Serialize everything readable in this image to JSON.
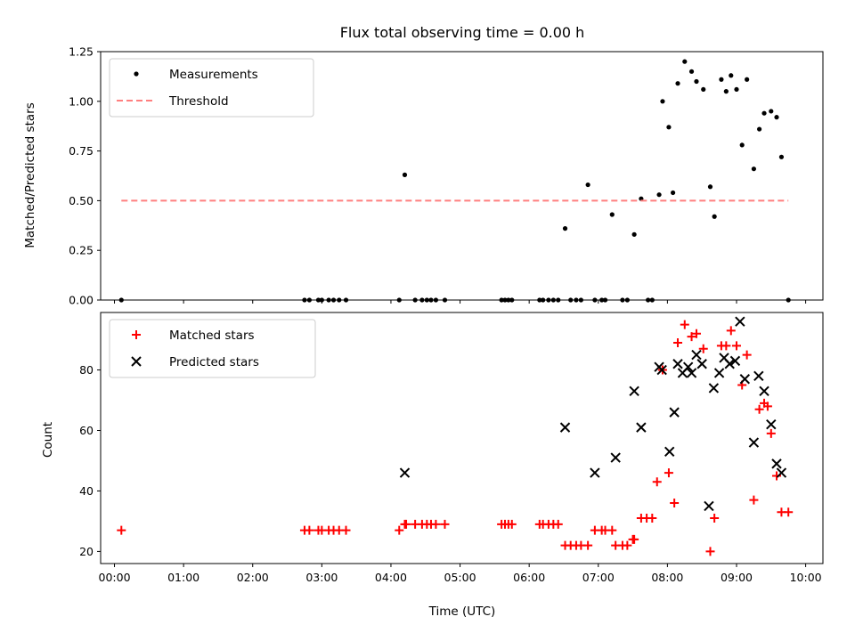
{
  "chart_data": [
    {
      "type": "scatter",
      "title": "Flux total observing time = 0.00 h",
      "ylabel": "Matched/Predicted stars",
      "xlabel": "",
      "xlim": [
        -0.2,
        10.25
      ],
      "ylim": [
        0,
        1.25
      ],
      "yticks": [
        "0.00",
        "0.25",
        "0.50",
        "0.75",
        "1.00",
        "1.25"
      ],
      "grid": false,
      "legend_position": "top-left",
      "series": [
        {
          "name": "Measurements",
          "marker": "dot",
          "color": "#000000",
          "x": [
            0.1,
            2.75,
            2.82,
            2.95,
            3.0,
            3.1,
            3.17,
            3.25,
            3.35,
            4.12,
            4.2,
            4.35,
            4.45,
            4.52,
            4.58,
            4.65,
            4.78,
            5.6,
            5.65,
            5.7,
            5.75,
            6.15,
            6.2,
            6.28,
            6.35,
            6.42,
            6.52,
            6.6,
            6.68,
            6.75,
            6.85,
            6.95,
            7.05,
            7.1,
            7.2,
            7.35,
            7.42,
            7.52,
            7.62,
            7.72,
            7.78,
            7.88,
            7.93,
            8.02,
            8.08,
            8.15,
            8.25,
            8.35,
            8.42,
            8.52,
            8.62,
            8.68,
            8.78,
            8.85,
            8.92,
            9.0,
            9.08,
            9.15,
            9.25,
            9.33,
            9.4,
            9.5,
            9.58,
            9.65,
            9.75
          ],
          "y": [
            0,
            0,
            0,
            0,
            0,
            0,
            0,
            0,
            0,
            0,
            0.63,
            0,
            0,
            0,
            0,
            0,
            0,
            0,
            0,
            0,
            0,
            0,
            0,
            0,
            0,
            0,
            0.36,
            0,
            0,
            0,
            0.58,
            0,
            0,
            0,
            0.43,
            0,
            0,
            0.33,
            0.51,
            0,
            0,
            0.53,
            1.0,
            0.87,
            0.54,
            1.09,
            1.2,
            1.15,
            1.1,
            1.06,
            0.57,
            0.42,
            1.11,
            1.05,
            1.13,
            1.06,
            0.78,
            1.11,
            0.66,
            0.86,
            0.94,
            0.95,
            0.92,
            0.72,
            0
          ],
          "clipped_x": [],
          "clipped_y": []
        },
        {
          "name": "Threshold",
          "marker": "dashed-line",
          "color": "#ff7f7f",
          "x": [
            0.1,
            9.75
          ],
          "y": [
            0.5,
            0.5
          ]
        }
      ]
    },
    {
      "type": "scatter",
      "title": "",
      "ylabel": "Count",
      "xlabel": "Time (UTC)",
      "xlim": [
        -0.2,
        10.25
      ],
      "ylim": [
        16,
        99
      ],
      "yticks": [
        "20",
        "40",
        "60",
        "80"
      ],
      "xticks": [
        "00:00",
        "01:00",
        "02:00",
        "03:00",
        "04:00",
        "05:00",
        "06:00",
        "07:00",
        "08:00",
        "09:00",
        "10:00"
      ],
      "grid": false,
      "legend_position": "top-left",
      "series": [
        {
          "name": "Matched stars",
          "marker": "plus",
          "color": "#ff0000",
          "x": [
            0.1,
            2.75,
            2.82,
            2.95,
            3.0,
            3.1,
            3.17,
            3.25,
            3.35,
            4.12,
            4.2,
            4.22,
            4.35,
            4.45,
            4.52,
            4.58,
            4.65,
            4.78,
            5.6,
            5.65,
            5.7,
            5.75,
            6.15,
            6.2,
            6.28,
            6.35,
            6.42,
            6.52,
            6.6,
            6.68,
            6.75,
            6.85,
            6.95,
            7.05,
            7.1,
            7.2,
            7.25,
            7.35,
            7.42,
            7.5,
            7.52,
            7.62,
            7.7,
            7.78,
            7.85,
            7.93,
            8.02,
            8.1,
            8.15,
            8.25,
            8.35,
            8.42,
            8.52,
            8.62,
            8.68,
            8.78,
            8.85,
            8.92,
            9.0,
            9.08,
            9.15,
            9.25,
            9.33,
            9.4,
            9.45,
            9.5,
            9.58,
            9.65,
            9.75
          ],
          "y": [
            27,
            27,
            27,
            27,
            27,
            27,
            27,
            27,
            27,
            27,
            29,
            29,
            29,
            29,
            29,
            29,
            29,
            29,
            29,
            29,
            29,
            29,
            29,
            29,
            29,
            29,
            29,
            22,
            22,
            22,
            22,
            22,
            27,
            27,
            27,
            27,
            22,
            22,
            22,
            24,
            24,
            31,
            31,
            31,
            43,
            80,
            46,
            36,
            89,
            95,
            91,
            92,
            87,
            20,
            31,
            88,
            88,
            93,
            88,
            75,
            85,
            37,
            67,
            69,
            68,
            59,
            45,
            33,
            33
          ]
        },
        {
          "name": "Predicted stars",
          "marker": "x",
          "color": "#000000",
          "x": [
            4.2,
            6.52,
            6.95,
            7.25,
            7.52,
            7.62,
            7.88,
            7.92,
            8.03,
            8.1,
            8.15,
            8.22,
            8.3,
            8.35,
            8.42,
            8.5,
            8.6,
            8.67,
            8.75,
            8.82,
            8.9,
            8.98,
            9.05,
            9.12,
            9.25,
            9.32,
            9.4,
            9.5,
            9.58,
            9.65
          ],
          "y": [
            46,
            61,
            46,
            51,
            73,
            61,
            81,
            80,
            53,
            66,
            82,
            79,
            81,
            79,
            85,
            82,
            35,
            74,
            79,
            84,
            82,
            83,
            96,
            77,
            56,
            78,
            73,
            62,
            49,
            46
          ]
        }
      ]
    }
  ]
}
